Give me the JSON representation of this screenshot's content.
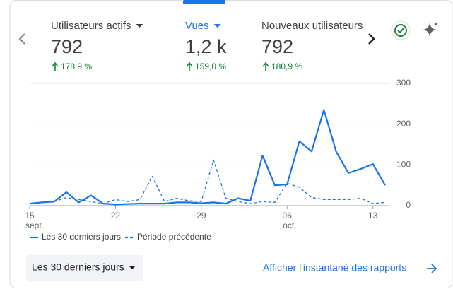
{
  "metrics": [
    {
      "name": "Utilisateurs actifs",
      "value": "792",
      "change": "178,9 %"
    },
    {
      "name": "Vues",
      "value": "1,2 k",
      "change": "159,0 %"
    },
    {
      "name": "Nouveaux utilisateurs",
      "value": "792",
      "change": "180,9 %"
    }
  ],
  "chart_data": {
    "type": "line",
    "categories": [
      "15",
      null,
      null,
      null,
      null,
      null,
      null,
      "22",
      null,
      null,
      null,
      null,
      null,
      null,
      "29",
      null,
      null,
      null,
      null,
      null,
      null,
      "06",
      null,
      null,
      null,
      null,
      null,
      null,
      "13",
      null
    ],
    "category_sublabels": [
      "sept.",
      null,
      null,
      null,
      null,
      null,
      null,
      null,
      null,
      null,
      null,
      null,
      null,
      null,
      null,
      null,
      null,
      null,
      null,
      null,
      null,
      "oct.",
      null,
      null,
      null,
      null,
      null,
      null,
      null,
      null
    ],
    "series": [
      {
        "name": "Les 30 derniers jours",
        "color": "#1a73e8",
        "style": "solid",
        "values": [
          5,
          8,
          10,
          33,
          8,
          25,
          5,
          3,
          4,
          5,
          5,
          5,
          8,
          8,
          6,
          8,
          5,
          18,
          12,
          123,
          50,
          52,
          158,
          133,
          235,
          133,
          80,
          90,
          102,
          50
        ]
      },
      {
        "name": "Période précédente",
        "color": "#1a73e8",
        "style": "dashed",
        "values": [
          5,
          8,
          10,
          20,
          15,
          10,
          5,
          15,
          10,
          15,
          72,
          10,
          18,
          12,
          10,
          112,
          18,
          10,
          5,
          10,
          8,
          55,
          45,
          20,
          15,
          15,
          15,
          18,
          5,
          8
        ]
      }
    ],
    "ylim": [
      0,
      300
    ],
    "yticks": [
      0,
      100,
      200,
      300
    ],
    "grid": true
  },
  "controls": {
    "range_dropdown": "Les 30 derniers jours",
    "report_link": "Afficher l'instantané des rapports"
  }
}
